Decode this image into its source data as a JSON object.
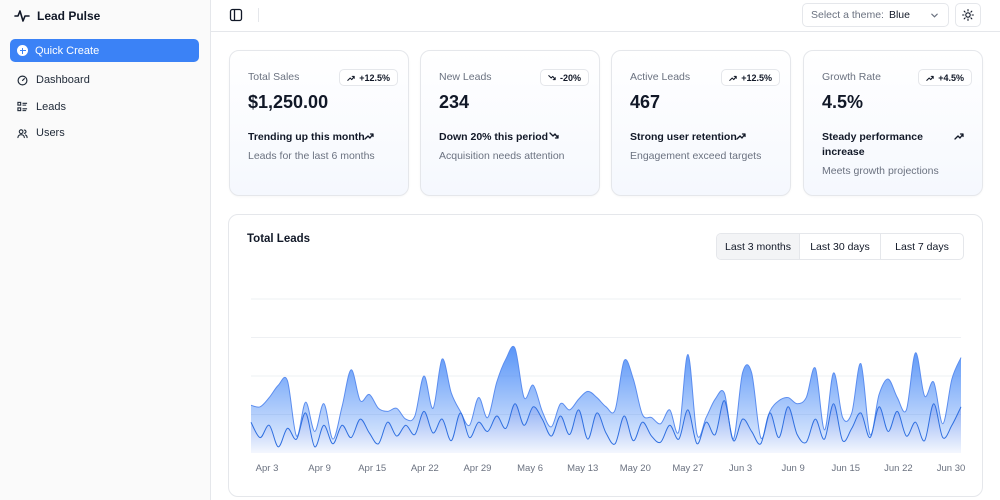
{
  "app": {
    "name": "Lead Pulse"
  },
  "sidebar": {
    "quick_create": "Quick Create",
    "items": [
      {
        "label": "Dashboard",
        "icon": "gauge-icon"
      },
      {
        "label": "Leads",
        "icon": "list-icon"
      },
      {
        "label": "Users",
        "icon": "users-icon"
      }
    ]
  },
  "header": {
    "theme_label": "Select a theme:",
    "theme_value": "Blue"
  },
  "cards": [
    {
      "label": "Total Sales",
      "value": "$1,250.00",
      "badge": "+12.5%",
      "badge_direction": "up",
      "trend": "Trending up this month",
      "trend_direction": "up",
      "desc": "Leads for the last 6 months"
    },
    {
      "label": "New Leads",
      "value": "234",
      "badge": "-20%",
      "badge_direction": "down",
      "trend": "Down 20% this period",
      "trend_direction": "down",
      "desc": "Acquisition needs attention"
    },
    {
      "label": "Active Leads",
      "value": "467",
      "badge": "+12.5%",
      "badge_direction": "up",
      "trend": "Strong user retention",
      "trend_direction": "up",
      "desc": "Engagement exceed targets"
    },
    {
      "label": "Growth Rate",
      "value": "4.5%",
      "badge": "+4.5%",
      "badge_direction": "up",
      "trend": "Steady performance increase",
      "trend_direction": "up",
      "desc": "Meets growth projections"
    }
  ],
  "chart_panel": {
    "title": "Total Leads",
    "ranges": [
      "Last 3 months",
      "Last 30 days",
      "Last 7 days"
    ],
    "active_range": "Last 3 months"
  },
  "colors": {
    "accent": "#3b82f6",
    "series_upper": "#5b8def",
    "series_lower": "#2f6fe0"
  },
  "chart_data": {
    "type": "area",
    "stacked": true,
    "title": "Total Leads",
    "grid": true,
    "x_ticks": [
      "Apr 3",
      "Apr 9",
      "Apr 15",
      "Apr 22",
      "Apr 29",
      "May 6",
      "May 13",
      "May 20",
      "May 27",
      "Jun 3",
      "Jun 9",
      "Jun 15",
      "Jun 22",
      "Jun 30"
    ],
    "ylim": [
      0,
      100
    ],
    "series": [
      {
        "values": [
          20,
          10,
          18,
          4,
          16,
          9,
          26,
          4,
          18,
          6,
          18,
          10,
          22,
          13,
          6,
          20,
          11,
          18,
          12,
          27,
          13,
          22,
          8,
          26,
          10,
          20,
          14,
          24,
          16,
          32,
          18,
          30,
          22,
          11,
          24,
          12,
          28,
          9,
          26,
          13,
          6,
          24,
          8,
          20,
          11,
          7,
          18,
          9,
          28,
          6,
          20,
          12,
          34,
          8,
          22,
          14,
          6,
          26,
          10,
          30,
          12,
          7,
          22,
          9,
          32,
          8,
          16,
          26,
          10,
          30,
          14,
          27,
          11,
          20,
          8,
          32,
          10,
          18,
          30
        ]
      },
      {
        "values": [
          11,
          20,
          18,
          40,
          31,
          2,
          7,
          10,
          14,
          3,
          12,
          44,
          12,
          25,
          23,
          7,
          18,
          4,
          12,
          23,
          16,
          39,
          31,
          1,
          8,
          16,
          9,
          22,
          45,
          36,
          18,
          14,
          5,
          6,
          8,
          16,
          7,
          31,
          10,
          17,
          22,
          36,
          40,
          5,
          12,
          12,
          10,
          5,
          36,
          6,
          3,
          23,
          5,
          1,
          30,
          38,
          4,
          1,
          24,
          6,
          20,
          29,
          33,
          6,
          20,
          15,
          10,
          32,
          2,
          8,
          34,
          9,
          17,
          45,
          29,
          14,
          9,
          30,
          32
        ]
      }
    ]
  }
}
